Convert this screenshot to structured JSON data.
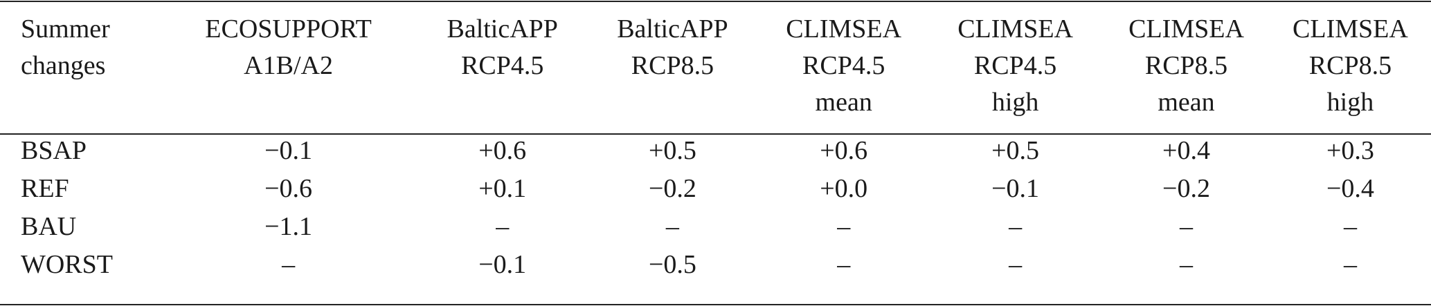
{
  "header": {
    "row_label": [
      "Summer",
      "changes"
    ],
    "columns": [
      [
        "ECOSUPPORT",
        "A1B/A2"
      ],
      [
        "BalticAPP",
        "RCP4.5"
      ],
      [
        "BalticAPP",
        "RCP8.5"
      ],
      [
        "CLIMSEA",
        "RCP4.5",
        "mean"
      ],
      [
        "CLIMSEA",
        "RCP4.5",
        "high"
      ],
      [
        "CLIMSEA",
        "RCP8.5",
        "mean"
      ],
      [
        "CLIMSEA",
        "RCP8.5",
        "high"
      ]
    ]
  },
  "rows": [
    {
      "label": "BSAP",
      "values": [
        "−0.1",
        "+0.6",
        "+0.5",
        "+0.6",
        "+0.5",
        "+0.4",
        "+0.3"
      ]
    },
    {
      "label": "REF",
      "values": [
        "−0.6",
        "+0.1",
        "−0.2",
        "+0.0",
        "−0.1",
        "−0.2",
        "−0.4"
      ]
    },
    {
      "label": "BAU",
      "values": [
        "−1.1",
        "–",
        "–",
        "–",
        "–",
        "–",
        "–"
      ]
    },
    {
      "label": "WORST",
      "values": [
        "–",
        "−0.1",
        "−0.5",
        "–",
        "–",
        "–",
        "–"
      ]
    }
  ]
}
